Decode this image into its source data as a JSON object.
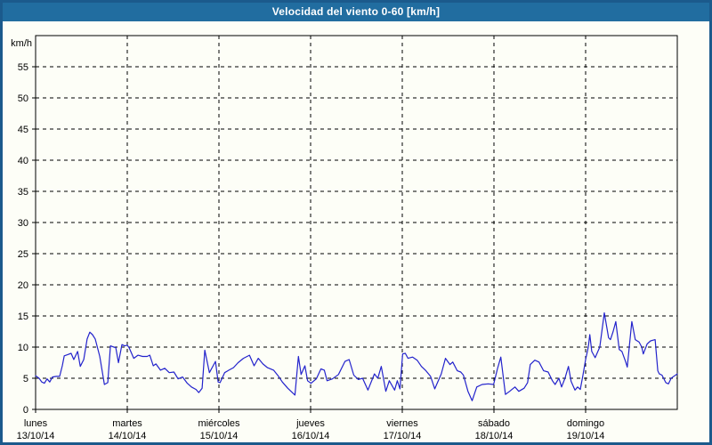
{
  "window": {
    "title": "Velocidad del viento 0-60 [km/h]"
  },
  "colors": {
    "titlebar_bg": "#216da0",
    "window_border": "#1b5a8c",
    "chart_bg": "#fdfef7",
    "grid": "#000000",
    "text": "#000000",
    "line": "#2323cc"
  },
  "chart_data": {
    "type": "line",
    "title": "Velocidad del viento 0-60 [km/h]",
    "ylabel": "km/h",
    "ylim": [
      0,
      60
    ],
    "ytick_step": 5,
    "ytick_labels": [
      "0",
      "5",
      "10",
      "15",
      "20",
      "25",
      "30",
      "35",
      "40",
      "45",
      "50",
      "55"
    ],
    "x_unit": "hours",
    "xlim": [
      0,
      168
    ],
    "hours_per_day": 24,
    "grid": "dashed",
    "legend_position": "none",
    "days": [
      {
        "name": "lunes",
        "date": "13/10/14"
      },
      {
        "name": "martes",
        "date": "14/10/14"
      },
      {
        "name": "miércoles",
        "date": "15/10/14"
      },
      {
        "name": "jueves",
        "date": "16/10/14"
      },
      {
        "name": "viernes",
        "date": "17/10/14"
      },
      {
        "name": "sábado",
        "date": "18/10/14"
      },
      {
        "name": "domingo",
        "date": "19/10/14"
      }
    ],
    "series": [
      {
        "name": "Velocidad del viento",
        "color": "#2323cc",
        "points": [
          [
            0,
            5.4
          ],
          [
            0.9,
            5.0
          ],
          [
            1.6,
            4.4
          ],
          [
            2.3,
            4.2
          ],
          [
            3.0,
            4.9
          ],
          [
            3.7,
            4.4
          ],
          [
            4.4,
            5.2
          ],
          [
            5.4,
            5.3
          ],
          [
            6.3,
            5.3
          ],
          [
            7.0,
            7.0
          ],
          [
            7.5,
            8.6
          ],
          [
            8.4,
            8.8
          ],
          [
            9.3,
            9.0
          ],
          [
            10.0,
            8.0
          ],
          [
            11.0,
            9.3
          ],
          [
            11.7,
            6.9
          ],
          [
            12.6,
            8.0
          ],
          [
            13.5,
            11.3
          ],
          [
            14.2,
            12.4
          ],
          [
            14.9,
            12.0
          ],
          [
            15.6,
            11.3
          ],
          [
            16.8,
            8.5
          ],
          [
            17.5,
            5.9
          ],
          [
            18.0,
            4.0
          ],
          [
            18.9,
            4.3
          ],
          [
            19.6,
            10.2
          ],
          [
            20.5,
            10.0
          ],
          [
            21.0,
            9.9
          ],
          [
            21.7,
            7.5
          ],
          [
            22.6,
            10.4
          ],
          [
            23.3,
            10.2
          ],
          [
            24.0,
            10.3
          ],
          [
            24.5,
            9.9
          ],
          [
            25.7,
            8.2
          ],
          [
            26.8,
            8.7
          ],
          [
            28.0,
            8.5
          ],
          [
            29.2,
            8.5
          ],
          [
            29.9,
            8.7
          ],
          [
            30.8,
            7.0
          ],
          [
            31.5,
            7.3
          ],
          [
            32.7,
            6.3
          ],
          [
            33.8,
            6.6
          ],
          [
            35.0,
            5.9
          ],
          [
            36.2,
            6.0
          ],
          [
            37.3,
            4.9
          ],
          [
            38.5,
            5.2
          ],
          [
            39.7,
            4.2
          ],
          [
            40.8,
            3.6
          ],
          [
            42.0,
            3.2
          ],
          [
            42.7,
            2.7
          ],
          [
            43.6,
            3.4
          ],
          [
            44.3,
            9.5
          ],
          [
            45.5,
            5.9
          ],
          [
            47.1,
            7.7
          ],
          [
            47.8,
            4.4
          ],
          [
            48.3,
            4.3
          ],
          [
            49.5,
            5.9
          ],
          [
            50.6,
            6.3
          ],
          [
            51.8,
            6.7
          ],
          [
            53.0,
            7.5
          ],
          [
            54.4,
            8.2
          ],
          [
            56.0,
            8.7
          ],
          [
            57.2,
            7.0
          ],
          [
            58.3,
            8.2
          ],
          [
            59.5,
            7.3
          ],
          [
            60.7,
            6.7
          ],
          [
            62.3,
            6.3
          ],
          [
            63.5,
            5.4
          ],
          [
            64.6,
            4.4
          ],
          [
            66.0,
            3.4
          ],
          [
            67.2,
            2.7
          ],
          [
            67.9,
            2.3
          ],
          [
            68.8,
            8.5
          ],
          [
            69.5,
            5.6
          ],
          [
            70.5,
            7.0
          ],
          [
            71.2,
            4.6
          ],
          [
            72.1,
            4.2
          ],
          [
            73.5,
            4.9
          ],
          [
            74.7,
            6.5
          ],
          [
            75.6,
            6.3
          ],
          [
            76.3,
            4.6
          ],
          [
            77.7,
            4.9
          ],
          [
            79.3,
            5.6
          ],
          [
            81.0,
            7.7
          ],
          [
            82.1,
            8.0
          ],
          [
            83.3,
            5.5
          ],
          [
            84.5,
            4.8
          ],
          [
            85.6,
            5.0
          ],
          [
            87.0,
            3.1
          ],
          [
            88.7,
            5.7
          ],
          [
            89.6,
            5.0
          ],
          [
            90.5,
            6.9
          ],
          [
            91.7,
            2.9
          ],
          [
            92.6,
            4.6
          ],
          [
            94.0,
            3.1
          ],
          [
            94.7,
            4.6
          ],
          [
            95.4,
            3.3
          ],
          [
            96.1,
            8.9
          ],
          [
            96.8,
            9.0
          ],
          [
            97.5,
            8.2
          ],
          [
            98.7,
            8.4
          ],
          [
            99.9,
            7.9
          ],
          [
            101.0,
            6.9
          ],
          [
            102.2,
            6.2
          ],
          [
            103.4,
            5.3
          ],
          [
            104.5,
            3.3
          ],
          [
            106.2,
            5.7
          ],
          [
            107.3,
            8.2
          ],
          [
            108.5,
            7.2
          ],
          [
            109.2,
            7.6
          ],
          [
            110.4,
            6.2
          ],
          [
            111.3,
            6.0
          ],
          [
            112.0,
            5.5
          ],
          [
            113.2,
            2.9
          ],
          [
            114.3,
            1.4
          ],
          [
            115.5,
            3.6
          ],
          [
            116.9,
            4.0
          ],
          [
            118.5,
            4.1
          ],
          [
            119.9,
            4.0
          ],
          [
            120.9,
            6.5
          ],
          [
            121.8,
            8.4
          ],
          [
            123.0,
            2.4
          ],
          [
            124.1,
            2.9
          ],
          [
            125.5,
            3.6
          ],
          [
            126.5,
            2.9
          ],
          [
            127.9,
            3.4
          ],
          [
            128.8,
            4.3
          ],
          [
            129.5,
            7.2
          ],
          [
            130.7,
            7.9
          ],
          [
            131.8,
            7.6
          ],
          [
            133.0,
            6.2
          ],
          [
            134.2,
            6.0
          ],
          [
            135.3,
            4.6
          ],
          [
            136.0,
            4.0
          ],
          [
            137.0,
            5.0
          ],
          [
            137.7,
            3.6
          ],
          [
            138.6,
            5.0
          ],
          [
            139.5,
            6.9
          ],
          [
            140.2,
            4.5
          ],
          [
            141.2,
            3.1
          ],
          [
            141.9,
            3.6
          ],
          [
            142.6,
            3.2
          ],
          [
            143.3,
            5.5
          ],
          [
            144.0,
            8.0
          ],
          [
            144.7,
            10.0
          ],
          [
            145.1,
            12.0
          ],
          [
            145.6,
            9.3
          ],
          [
            146.5,
            8.3
          ],
          [
            147.7,
            10.0
          ],
          [
            148.9,
            15.5
          ],
          [
            149.6,
            13.0
          ],
          [
            150.0,
            11.5
          ],
          [
            150.5,
            11.2
          ],
          [
            151.2,
            12.5
          ],
          [
            151.9,
            14.1
          ],
          [
            152.8,
            9.6
          ],
          [
            153.5,
            9.3
          ],
          [
            154.5,
            7.6
          ],
          [
            154.9,
            6.8
          ],
          [
            156.1,
            14.1
          ],
          [
            157.0,
            11.2
          ],
          [
            158.0,
            10.8
          ],
          [
            158.7,
            10.0
          ],
          [
            159.1,
            8.9
          ],
          [
            160.1,
            10.5
          ],
          [
            161.0,
            11.0
          ],
          [
            162.2,
            11.2
          ],
          [
            162.9,
            6.2
          ],
          [
            163.3,
            5.7
          ],
          [
            164.0,
            5.5
          ],
          [
            165.0,
            4.3
          ],
          [
            165.7,
            4.1
          ],
          [
            166.4,
            5.0
          ],
          [
            167.3,
            5.4
          ],
          [
            168.0,
            5.7
          ]
        ]
      }
    ]
  }
}
